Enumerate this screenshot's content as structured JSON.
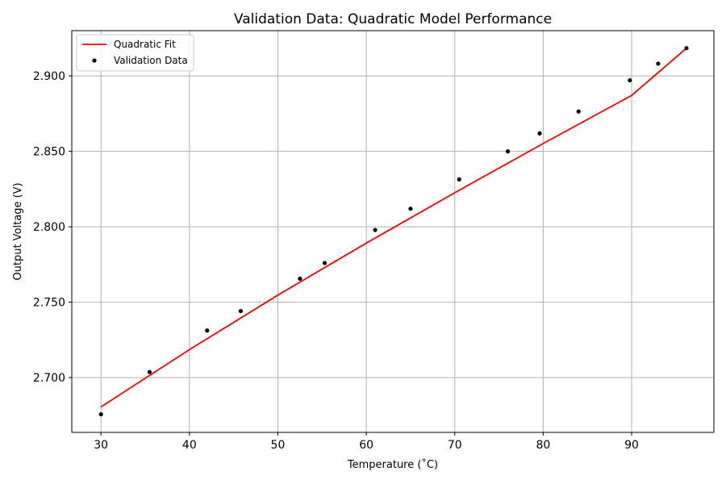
{
  "chart_data": {
    "type": "line",
    "title": "Validation Data: Quadratic Model Performance",
    "xlabel": "Temperature (˚C)",
    "ylabel": "Output Voltage (V)",
    "xlim": [
      26.7,
      99.3
    ],
    "ylim": [
      2.6637,
      2.93
    ],
    "xticks": [
      30,
      40,
      50,
      60,
      70,
      80,
      90
    ],
    "xtick_labels": [
      "30",
      "40",
      "50",
      "60",
      "70",
      "80",
      "90"
    ],
    "yticks": [
      2.7,
      2.75,
      2.8,
      2.85,
      2.9
    ],
    "ytick_labels": [
      "2.700",
      "2.750",
      "2.800",
      "2.850",
      "2.900"
    ],
    "grid": true,
    "legend_position": "upper-left",
    "series": [
      {
        "name": "Quadratic Fit",
        "kind": "line",
        "color": "#ff0000",
        "x": [
          30,
          40,
          50,
          60,
          70,
          80,
          90,
          96.2
        ],
        "y": [
          2.6806,
          2.7186,
          2.7547,
          2.7892,
          2.8226,
          2.8552,
          2.8871,
          2.9184
        ]
      },
      {
        "name": "Validation Data",
        "kind": "scatter",
        "color": "#000000",
        "x": [
          30.0,
          35.5,
          42.0,
          45.8,
          52.5,
          55.3,
          61.0,
          65.0,
          70.5,
          76.0,
          79.6,
          84.0,
          89.8,
          93.0,
          96.2
        ],
        "y": [
          2.6757,
          2.7037,
          2.7312,
          2.7441,
          2.7656,
          2.776,
          2.7979,
          2.812,
          2.8314,
          2.85,
          2.8619,
          2.8764,
          2.8971,
          2.9081,
          2.9184
        ]
      }
    ]
  }
}
